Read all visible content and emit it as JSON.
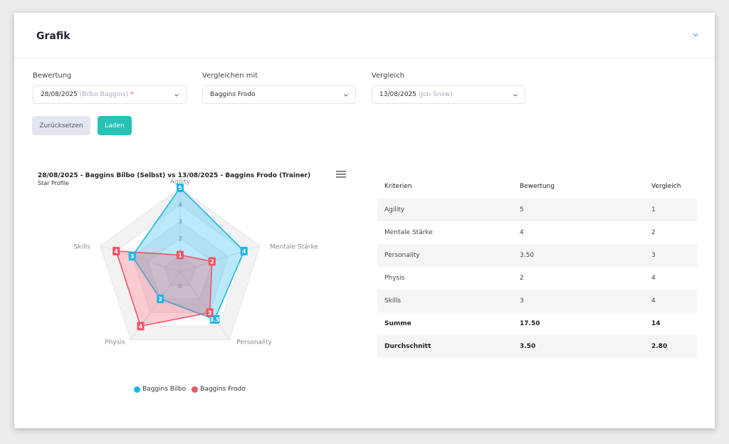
{
  "panel": {
    "title": "Grafik"
  },
  "form": {
    "bewertung": {
      "label": "Bewertung",
      "value": "28/08/2025",
      "sub": "(Bilbo Baggins)",
      "required_mark": "*"
    },
    "vergleichen_mit": {
      "label": "Vergleichen mit",
      "value": "Baggins Frodo"
    },
    "vergleich": {
      "label": "Vergleich",
      "value": "13/08/2025",
      "sub": "(Jon Snow)"
    },
    "reset_label": "Zurücksetzen",
    "load_label": "Laden"
  },
  "chart_data": {
    "type": "radar",
    "title": "28/08/2025 - Baggins Bilbo (Selbst) vs 13/08/2025 - Baggins Frodo (Trainer)",
    "subtitle": "Star Profile",
    "categories": [
      "Agility",
      "Mentale Stärke",
      "Personality",
      "Physis",
      "Skills"
    ],
    "rlim": [
      0,
      5
    ],
    "ticks": [
      "0",
      "2",
      "3",
      "4"
    ],
    "series": [
      {
        "name": "Baggins Bilbo",
        "color": "#1bb6ea",
        "values": [
          5,
          4,
          3.5,
          2,
          3
        ],
        "labels": [
          "5",
          "4",
          "3.5",
          "2",
          "3"
        ]
      },
      {
        "name": "Baggins Frodo",
        "color": "#ef5466",
        "values": [
          1,
          2,
          3,
          4,
          4
        ],
        "labels": [
          "1",
          "2",
          "3",
          "4",
          "4"
        ]
      }
    ],
    "legend_position": "bottom"
  },
  "table": {
    "headers": [
      "Kriterien",
      "Bewertung",
      "Vergleich"
    ],
    "rows": [
      [
        "Agility",
        "5",
        "1"
      ],
      [
        "Mentale Stärke",
        "4",
        "2"
      ],
      [
        "Personality",
        "3.50",
        "3"
      ],
      [
        "Physis",
        "2",
        "4"
      ],
      [
        "Skills",
        "3",
        "4"
      ]
    ],
    "summary": [
      [
        "Summe",
        "17.50",
        "14"
      ],
      [
        "Durchschnitt",
        "3.50",
        "2.80"
      ]
    ]
  }
}
